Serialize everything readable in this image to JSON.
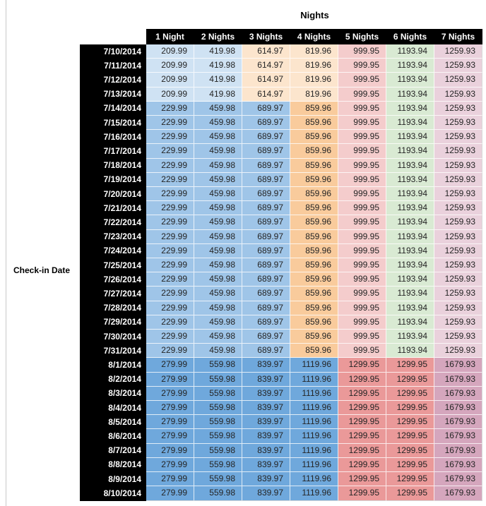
{
  "styles": {
    "palette": {
      "blue1": "#6fa8dc",
      "blue2": "#9fc5e8",
      "blue3": "#cfe2f3",
      "orange2": "#f9cb9c",
      "orange3": "#fce5cd",
      "red2": "#ea9999",
      "red3": "#f4cccc",
      "green3": "#d9ead3",
      "magenta2": "#d5a6bd",
      "magenta3": "#ead1dc",
      "header_bg": "#000000",
      "header_text": "#ffffff",
      "value_text": "#242424",
      "page_rule": "#c9c9c9"
    }
  },
  "chart_data": {
    "type": "table",
    "title": "Nights",
    "row_axis_label": "Check-in Date",
    "columns": [
      "1 Night",
      "2 Nights",
      "3 Nights",
      "4 Nights",
      "5 Nights",
      "6 Nights",
      "7 Nights"
    ],
    "band_colors": {
      "early": [
        "blue3",
        "blue3",
        "orange3",
        "orange3",
        "red3",
        "green3",
        "magenta3"
      ],
      "mid": [
        "blue2",
        "blue2",
        "blue2",
        "orange2",
        "red3",
        "green3",
        "magenta3"
      ],
      "late": [
        "blue1",
        "blue1",
        "blue1",
        "blue1",
        "red2",
        "red2",
        "magenta2"
      ]
    },
    "rows": [
      {
        "date": "7/10/2014",
        "band": "early",
        "values": [
          "209.99",
          "419.98",
          "614.97",
          "819.96",
          "999.95",
          "1193.94",
          "1259.93"
        ]
      },
      {
        "date": "7/11/2014",
        "band": "early",
        "values": [
          "209.99",
          "419.98",
          "614.97",
          "819.96",
          "999.95",
          "1193.94",
          "1259.93"
        ]
      },
      {
        "date": "7/12/2014",
        "band": "early",
        "values": [
          "209.99",
          "419.98",
          "614.97",
          "819.96",
          "999.95",
          "1193.94",
          "1259.93"
        ]
      },
      {
        "date": "7/13/2014",
        "band": "early",
        "values": [
          "209.99",
          "419.98",
          "614.97",
          "819.96",
          "999.95",
          "1193.94",
          "1259.93"
        ]
      },
      {
        "date": "7/14/2014",
        "band": "mid",
        "values": [
          "229.99",
          "459.98",
          "689.97",
          "859.96",
          "999.95",
          "1193.94",
          "1259.93"
        ]
      },
      {
        "date": "7/15/2014",
        "band": "mid",
        "values": [
          "229.99",
          "459.98",
          "689.97",
          "859.96",
          "999.95",
          "1193.94",
          "1259.93"
        ]
      },
      {
        "date": "7/16/2014",
        "band": "mid",
        "values": [
          "229.99",
          "459.98",
          "689.97",
          "859.96",
          "999.95",
          "1193.94",
          "1259.93"
        ]
      },
      {
        "date": "7/17/2014",
        "band": "mid",
        "values": [
          "229.99",
          "459.98",
          "689.97",
          "859.96",
          "999.95",
          "1193.94",
          "1259.93"
        ]
      },
      {
        "date": "7/18/2014",
        "band": "mid",
        "values": [
          "229.99",
          "459.98",
          "689.97",
          "859.96",
          "999.95",
          "1193.94",
          "1259.93"
        ]
      },
      {
        "date": "7/19/2014",
        "band": "mid",
        "values": [
          "229.99",
          "459.98",
          "689.97",
          "859.96",
          "999.95",
          "1193.94",
          "1259.93"
        ]
      },
      {
        "date": "7/20/2014",
        "band": "mid",
        "values": [
          "229.99",
          "459.98",
          "689.97",
          "859.96",
          "999.95",
          "1193.94",
          "1259.93"
        ]
      },
      {
        "date": "7/21/2014",
        "band": "mid",
        "values": [
          "229.99",
          "459.98",
          "689.97",
          "859.96",
          "999.95",
          "1193.94",
          "1259.93"
        ]
      },
      {
        "date": "7/22/2014",
        "band": "mid",
        "values": [
          "229.99",
          "459.98",
          "689.97",
          "859.96",
          "999.95",
          "1193.94",
          "1259.93"
        ]
      },
      {
        "date": "7/23/2014",
        "band": "mid",
        "values": [
          "229.99",
          "459.98",
          "689.97",
          "859.96",
          "999.95",
          "1193.94",
          "1259.93"
        ]
      },
      {
        "date": "7/24/2014",
        "band": "mid",
        "values": [
          "229.99",
          "459.98",
          "689.97",
          "859.96",
          "999.95",
          "1193.94",
          "1259.93"
        ]
      },
      {
        "date": "7/25/2014",
        "band": "mid",
        "values": [
          "229.99",
          "459.98",
          "689.97",
          "859.96",
          "999.95",
          "1193.94",
          "1259.93"
        ]
      },
      {
        "date": "7/26/2014",
        "band": "mid",
        "values": [
          "229.99",
          "459.98",
          "689.97",
          "859.96",
          "999.95",
          "1193.94",
          "1259.93"
        ]
      },
      {
        "date": "7/27/2014",
        "band": "mid",
        "values": [
          "229.99",
          "459.98",
          "689.97",
          "859.96",
          "999.95",
          "1193.94",
          "1259.93"
        ]
      },
      {
        "date": "7/28/2014",
        "band": "mid",
        "values": [
          "229.99",
          "459.98",
          "689.97",
          "859.96",
          "999.95",
          "1193.94",
          "1259.93"
        ]
      },
      {
        "date": "7/29/2014",
        "band": "mid",
        "values": [
          "229.99",
          "459.98",
          "689.97",
          "859.96",
          "999.95",
          "1193.94",
          "1259.93"
        ]
      },
      {
        "date": "7/30/2014",
        "band": "mid",
        "values": [
          "229.99",
          "459.98",
          "689.97",
          "859.96",
          "999.95",
          "1193.94",
          "1259.93"
        ]
      },
      {
        "date": "7/31/2014",
        "band": "mid",
        "values": [
          "229.99",
          "459.98",
          "689.97",
          "859.96",
          "999.95",
          "1193.94",
          "1259.93"
        ]
      },
      {
        "date": "8/1/2014",
        "band": "late",
        "values": [
          "279.99",
          "559.98",
          "839.97",
          "1119.96",
          "1299.95",
          "1299.95",
          "1679.93"
        ]
      },
      {
        "date": "8/2/2014",
        "band": "late",
        "values": [
          "279.99",
          "559.98",
          "839.97",
          "1119.96",
          "1299.95",
          "1299.95",
          "1679.93"
        ]
      },
      {
        "date": "8/3/2014",
        "band": "late",
        "values": [
          "279.99",
          "559.98",
          "839.97",
          "1119.96",
          "1299.95",
          "1299.95",
          "1679.93"
        ]
      },
      {
        "date": "8/4/2014",
        "band": "late",
        "values": [
          "279.99",
          "559.98",
          "839.97",
          "1119.96",
          "1299.95",
          "1299.95",
          "1679.93"
        ]
      },
      {
        "date": "8/5/2014",
        "band": "late",
        "values": [
          "279.99",
          "559.98",
          "839.97",
          "1119.96",
          "1299.95",
          "1299.95",
          "1679.93"
        ]
      },
      {
        "date": "8/6/2014",
        "band": "late",
        "values": [
          "279.99",
          "559.98",
          "839.97",
          "1119.96",
          "1299.95",
          "1299.95",
          "1679.93"
        ]
      },
      {
        "date": "8/7/2014",
        "band": "late",
        "values": [
          "279.99",
          "559.98",
          "839.97",
          "1119.96",
          "1299.95",
          "1299.95",
          "1679.93"
        ]
      },
      {
        "date": "8/8/2014",
        "band": "late",
        "values": [
          "279.99",
          "559.98",
          "839.97",
          "1119.96",
          "1299.95",
          "1299.95",
          "1679.93"
        ]
      },
      {
        "date": "8/9/2014",
        "band": "late",
        "values": [
          "279.99",
          "559.98",
          "839.97",
          "1119.96",
          "1299.95",
          "1299.95",
          "1679.93"
        ]
      },
      {
        "date": "8/10/2014",
        "band": "late",
        "values": [
          "279.99",
          "559.98",
          "839.97",
          "1119.96",
          "1299.95",
          "1299.95",
          "1679.93"
        ]
      }
    ]
  }
}
